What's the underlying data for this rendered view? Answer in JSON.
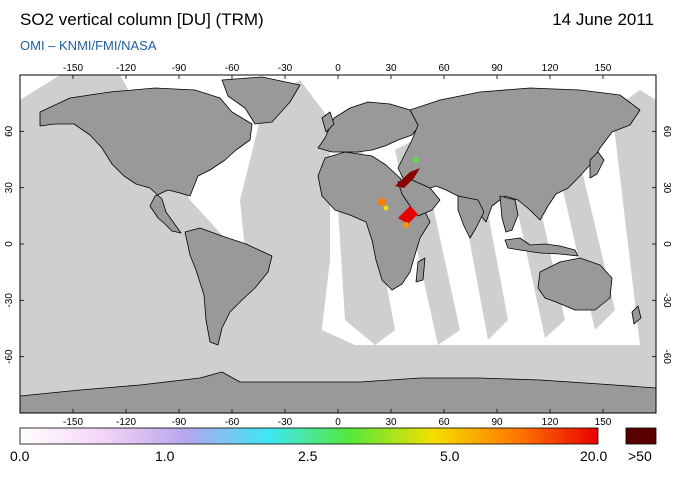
{
  "header": {
    "title": "SO2 vertical column [DU] (TRM)",
    "date": "14 June 2011",
    "credit": "OMI  –  KNMI/FMI/NASA"
  },
  "map": {
    "projection": "equirectangular",
    "lon_range": [
      -180,
      180
    ],
    "lat_range": [
      -90,
      90
    ],
    "lon_ticks": [
      -150,
      -120,
      -90,
      -60,
      -30,
      0,
      30,
      60,
      90,
      120,
      150
    ],
    "lat_ticks": [
      60,
      30,
      0,
      -30,
      -60
    ],
    "colors": {
      "land": "#999999",
      "no_data": "#cfcfcf",
      "ocean": "#ffffff",
      "coast": "#000000"
    },
    "hotspots": [
      {
        "name": "Dubbi volcano plume, Eritrea",
        "lon": 40,
        "lat": 14,
        "level": "20.0"
      },
      {
        "name": "plume over Red Sea / Arabia",
        "lon": 35,
        "lat": 28,
        "level": ">50"
      }
    ]
  },
  "colorbar": {
    "labels": [
      "0.0",
      "1.0",
      "2.5",
      "5.0",
      "20.0",
      ">50"
    ],
    "overflow_color": "#5a0000",
    "stops": [
      "#ffffff",
      "#f5d5f5",
      "#b7a6ee",
      "#3fe6f7",
      "#55e83a",
      "#f4df00",
      "#ff7a00",
      "#e80000"
    ]
  }
}
